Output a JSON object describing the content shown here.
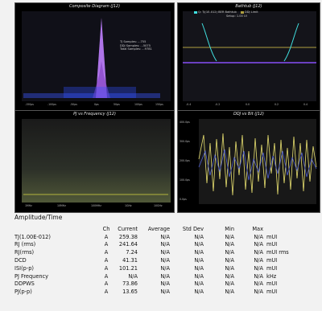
{
  "panes": [
    {
      "title": "Composite Diagram (J12)",
      "legend": [
        "TJ Samples: ...755",
        "DDJ Samples: ...5075",
        "Total Samples: ...9781"
      ],
      "ticks": [
        "-150ps",
        "-100ps",
        "-50ps",
        "0ps",
        "50ps",
        "100ps",
        "150ps"
      ]
    },
    {
      "title": "Bathtub (J12)",
      "legend": [
        "Q: TJ(1E-012) BER Bathtub",
        "DDJ Limit",
        "Setup: 1.00 UI"
      ],
      "ticks": [
        "-0.4",
        "-0.2",
        "0.0",
        "0.2",
        "0.4"
      ]
    },
    {
      "title": "PJ vs Frequency (J12)",
      "ticks": [
        "1MHz",
        "10MHz",
        "100MHz",
        "1GHz",
        "10GHz"
      ]
    },
    {
      "title": "DDJ vs Bit (J12)",
      "ticks": [
        "400.0ps",
        "300.0ps",
        "200.0ps",
        "100.0ps",
        "0.0ps"
      ]
    }
  ],
  "amplitude": {
    "title": "Amplitude/Time",
    "columns": [
      "",
      "Ch",
      "Current",
      "Average",
      "Std Dev",
      "Min",
      "Max",
      ""
    ],
    "rows": [
      {
        "name": "TJ(1.00E-012)",
        "ch": "A",
        "current": "259.38",
        "average": "N/A",
        "std_dev": "N/A",
        "min": "N/A",
        "max": "N/A",
        "unit": "mUI"
      },
      {
        "name": "RJ (rms)",
        "ch": "A",
        "current": "241.64",
        "average": "N/A",
        "std_dev": "N/A",
        "min": "N/A",
        "max": "N/A",
        "unit": "mUI"
      },
      {
        "name": "RJ(rms)",
        "ch": "A",
        "current": "7.24",
        "average": "N/A",
        "std_dev": "N/A",
        "min": "N/A",
        "max": "N/A",
        "unit": "mUI rms"
      },
      {
        "name": "DCD",
        "ch": "A",
        "current": "41.31",
        "average": "N/A",
        "std_dev": "N/A",
        "min": "N/A",
        "max": "N/A",
        "unit": "mUI"
      },
      {
        "name": "ISI(p-p)",
        "ch": "A",
        "current": "101.21",
        "average": "N/A",
        "std_dev": "N/A",
        "min": "N/A",
        "max": "N/A",
        "unit": "mUI"
      },
      {
        "name": "PJ Frequency",
        "ch": "A",
        "current": "N/A",
        "average": "N/A",
        "std_dev": "N/A",
        "min": "N/A",
        "max": "N/A",
        "unit": "kHz"
      },
      {
        "name": "DDPWS",
        "ch": "A",
        "current": "73.86",
        "average": "N/A",
        "std_dev": "N/A",
        "min": "N/A",
        "max": "N/A",
        "unit": "mUI"
      },
      {
        "name": "PJ(p-p)",
        "ch": "A",
        "current": "13.65",
        "average": "N/A",
        "std_dev": "N/A",
        "min": "N/A",
        "max": "N/A",
        "unit": "mUI"
      }
    ]
  },
  "colors": {
    "pane_bg": "#000000",
    "histogram": "#c080ff",
    "trace_yellow": "#e8e070",
    "trace_blue": "#5060d0"
  }
}
